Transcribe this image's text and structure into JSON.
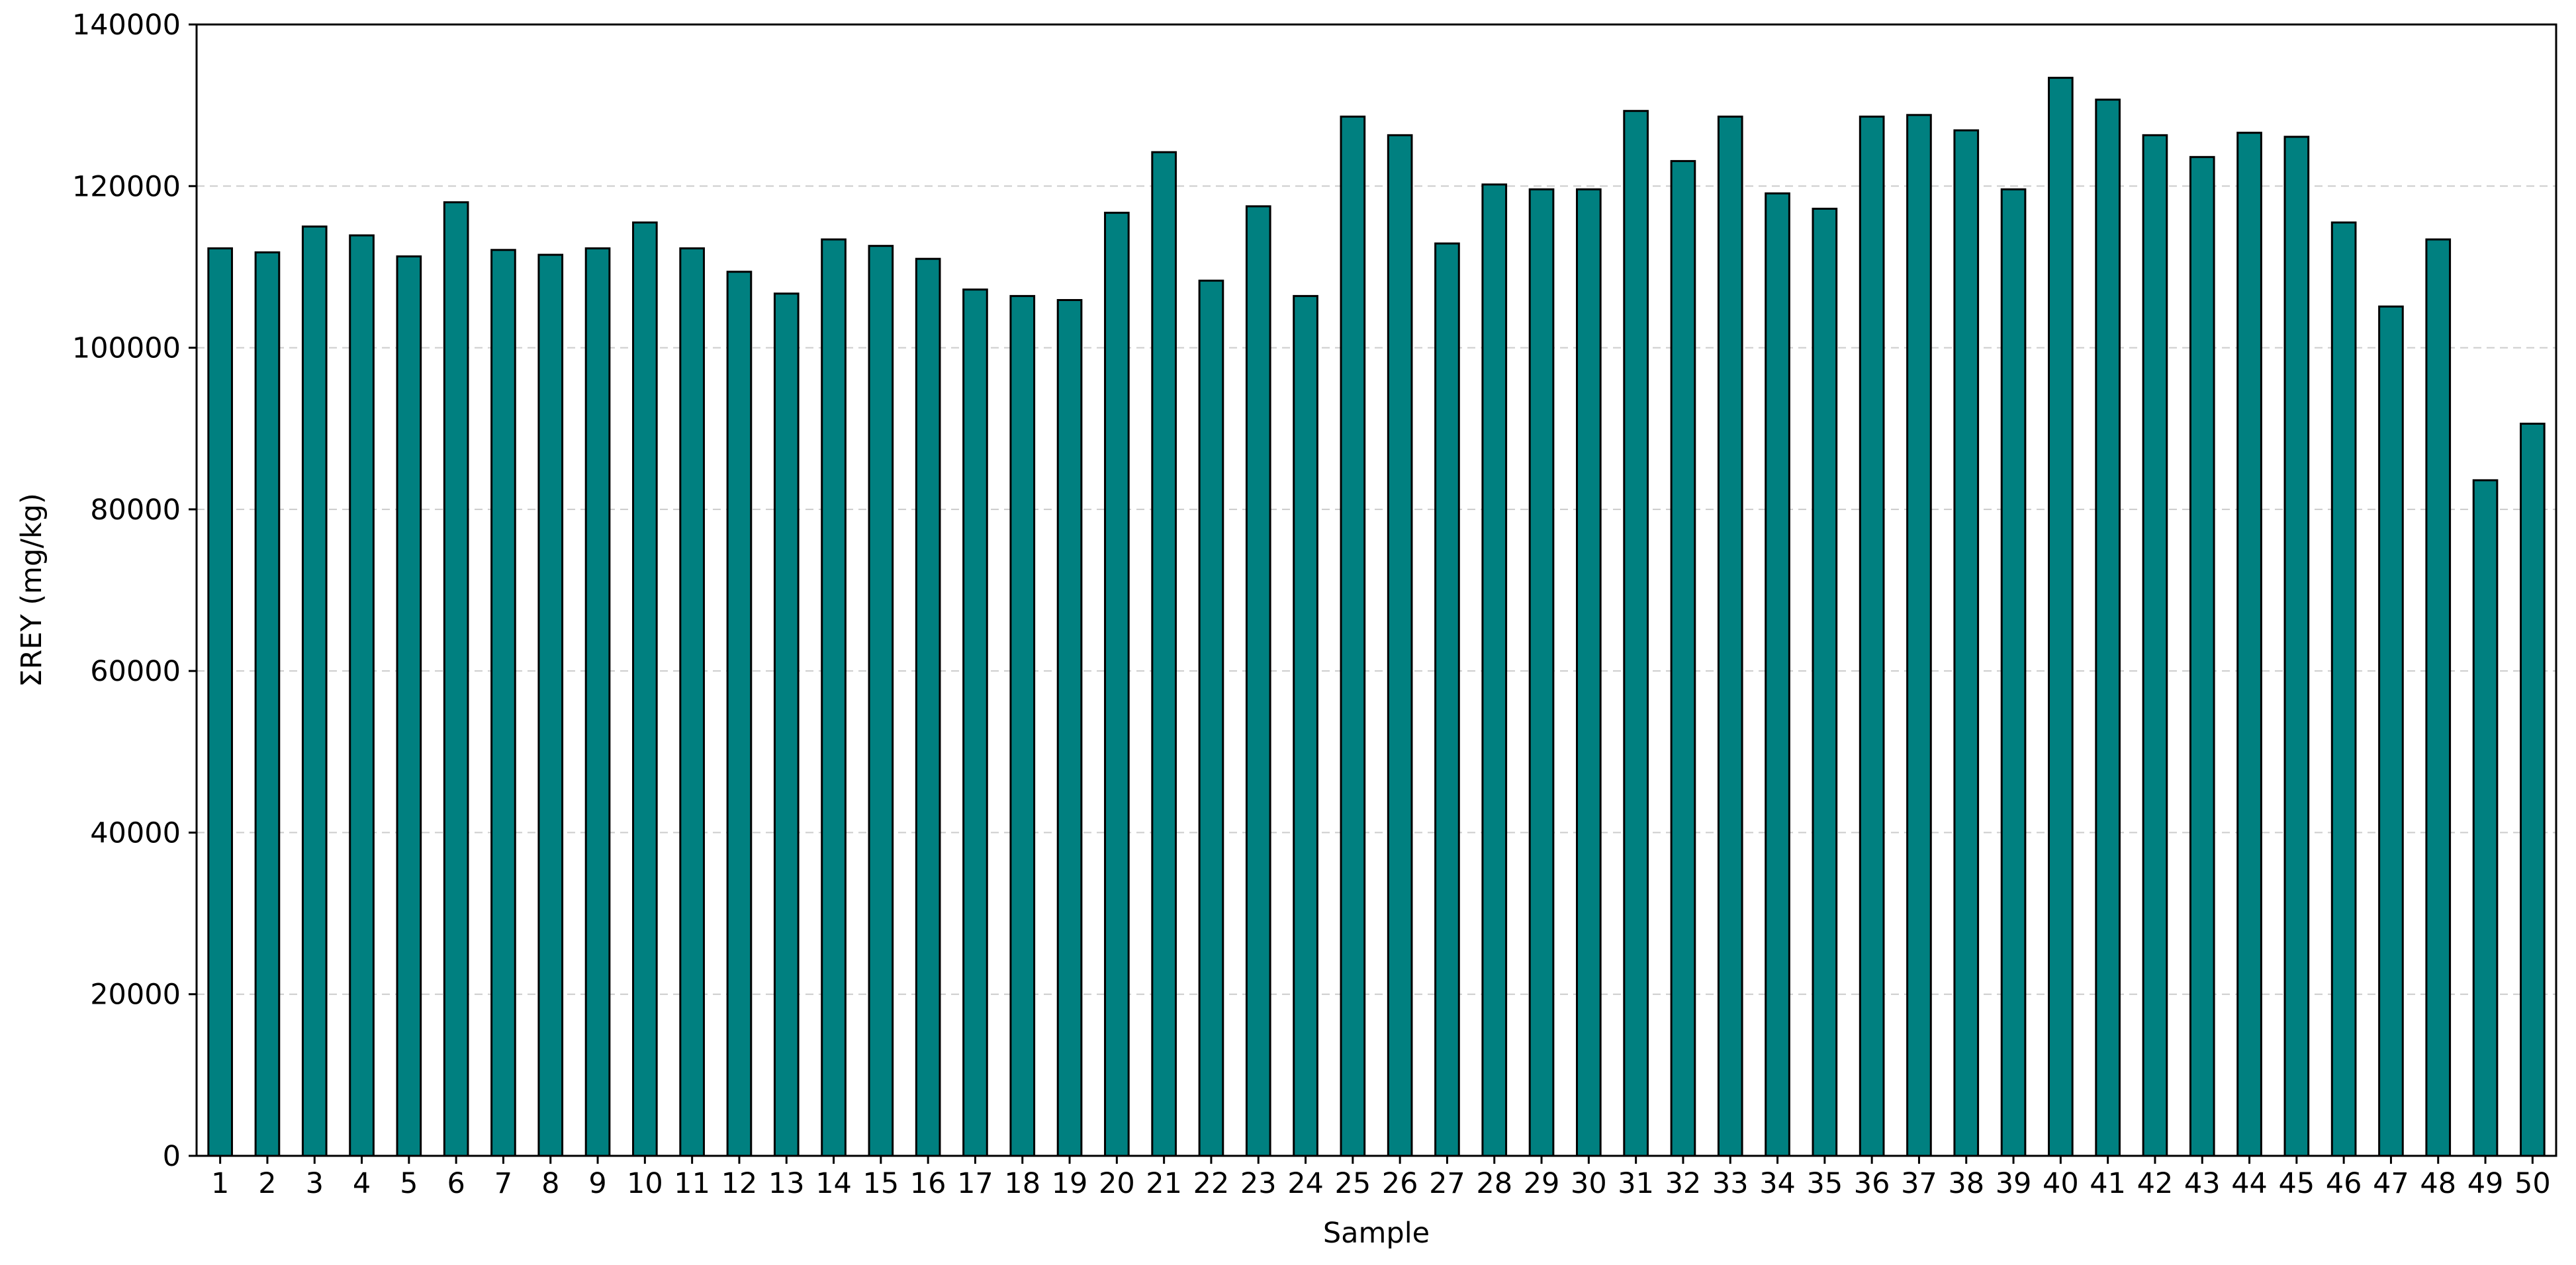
{
  "chart_data": {
    "type": "bar",
    "title": "",
    "xlabel": "Sample",
    "ylabel": "ΣREY (mg/kg)",
    "ylim": [
      0,
      140000
    ],
    "yticks": [
      0,
      20000,
      40000,
      60000,
      80000,
      100000,
      120000,
      140000
    ],
    "ytick_labels": [
      "0",
      "20000",
      "40000",
      "60000",
      "80000",
      "100000",
      "120000",
      "140000"
    ],
    "grid": "horizontal dashed",
    "legend": "none",
    "bar_color": "#008080",
    "edge_color": "#000000",
    "categories": [
      "1",
      "2",
      "3",
      "4",
      "5",
      "6",
      "7",
      "8",
      "9",
      "10",
      "11",
      "12",
      "13",
      "14",
      "15",
      "16",
      "17",
      "18",
      "19",
      "20",
      "21",
      "22",
      "23",
      "24",
      "25",
      "26",
      "27",
      "28",
      "29",
      "30",
      "31",
      "32",
      "33",
      "34",
      "35",
      "36",
      "37",
      "38",
      "39",
      "40",
      "41",
      "42",
      "43",
      "44",
      "45",
      "46",
      "47",
      "48",
      "49",
      "50"
    ],
    "values": [
      112300,
      111800,
      115000,
      113900,
      111300,
      118000,
      112100,
      111500,
      112300,
      115500,
      112300,
      109400,
      106700,
      113400,
      112600,
      111000,
      107200,
      106400,
      105900,
      116700,
      124200,
      108300,
      117500,
      106400,
      128600,
      126300,
      112900,
      120200,
      119600,
      119600,
      129300,
      123100,
      128600,
      119100,
      117200,
      128600,
      128800,
      126900,
      119600,
      133400,
      130700,
      126300,
      123600,
      126600,
      126100,
      115500,
      105100,
      113400,
      83600,
      90600
    ]
  }
}
